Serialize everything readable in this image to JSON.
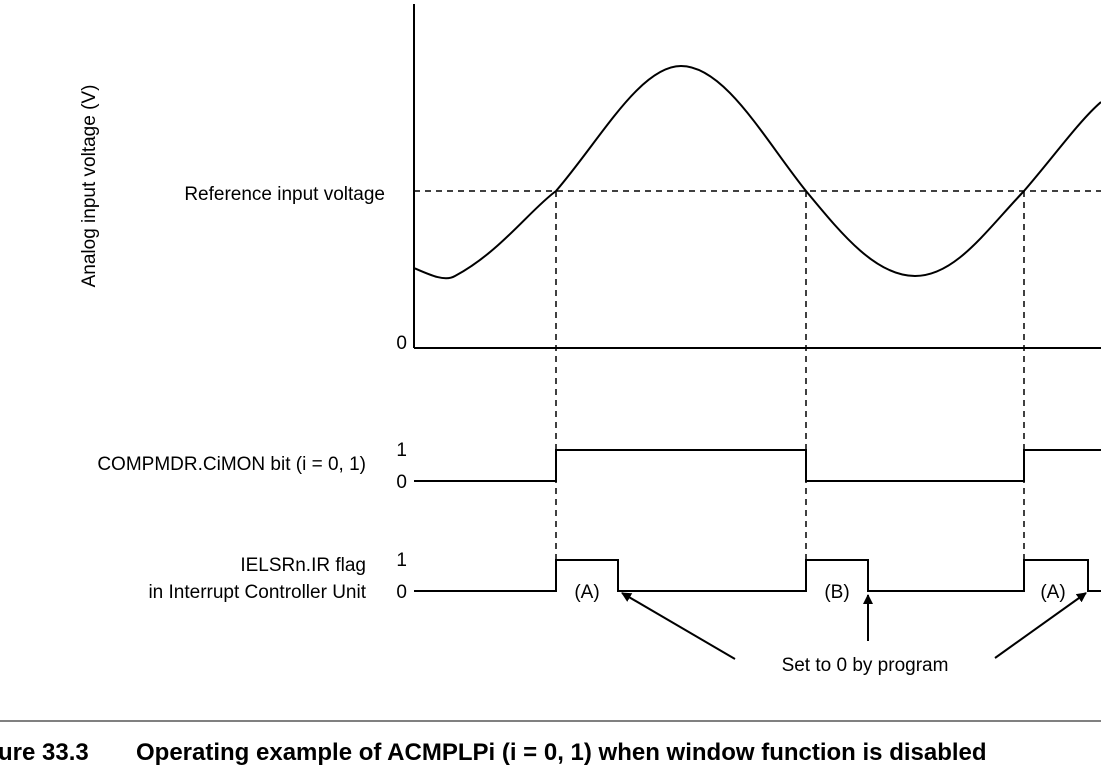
{
  "diagram": {
    "y_axis_label": "Analog input voltage (V)",
    "reference_label": "Reference input voltage",
    "zero_label": "0",
    "compmdr": {
      "label": "COMPMDR.CiMON bit (i = 0, 1)",
      "high_label": "1",
      "low_label": "0"
    },
    "ielsr": {
      "label_line1": "IELSRn.IR flag",
      "label_line2": "in Interrupt Controller Unit",
      "high_label": "1",
      "low_label": "0",
      "pulse_labels": [
        "(A)",
        "(B)",
        "(A)"
      ]
    },
    "annotation": "Set to 0 by program"
  },
  "caption": {
    "number": "ure 33.3",
    "text": "Operating example of ACMPLPi (i = 0, 1) when window function is disabled"
  }
}
